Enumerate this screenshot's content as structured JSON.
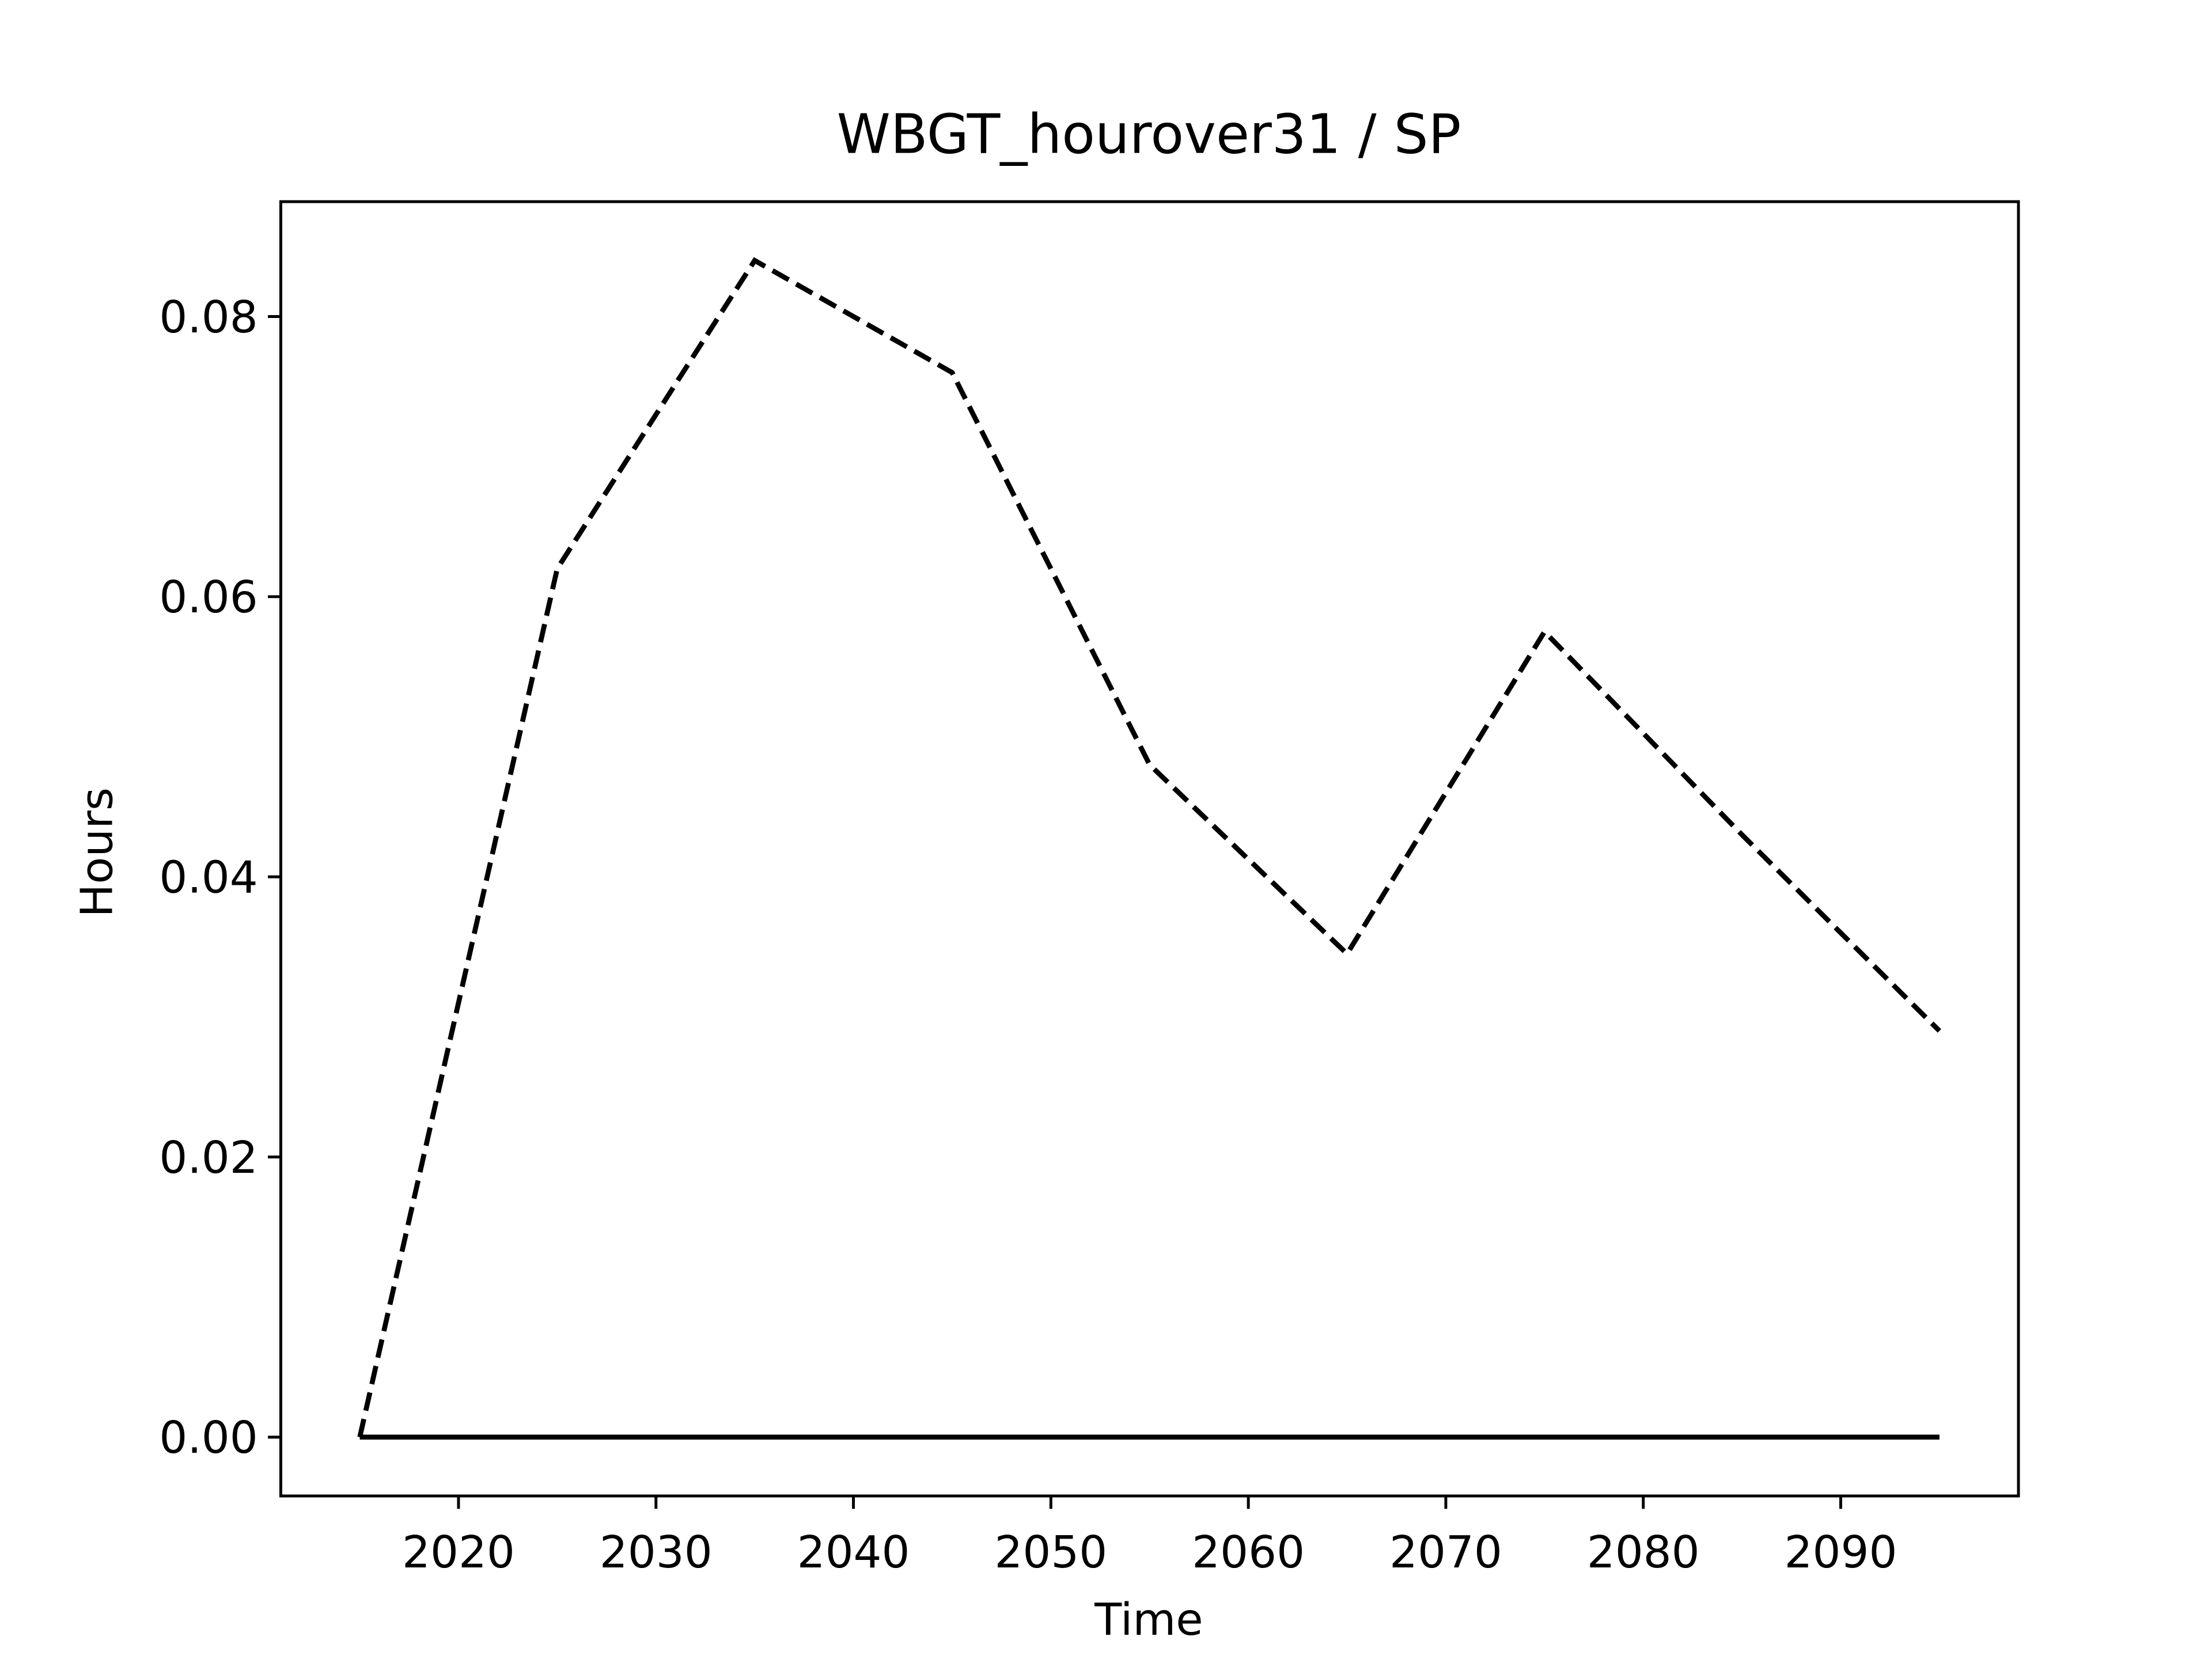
{
  "chart_data": {
    "type": "line",
    "title": "WBGT_hourover31 / SP",
    "xlabel": "Time",
    "ylabel": "Hours",
    "x": [
      2015,
      2025,
      2035,
      2045,
      2055,
      2065,
      2075,
      2085,
      2095
    ],
    "series": [
      {
        "color": "#000000",
        "linestyle": "dashed",
        "values": [
          0,
          0.062,
          0.084,
          0.076,
          0.048,
          0.0345,
          0.0575,
          0.043,
          0.029
        ]
      },
      {
        "color": "#000000",
        "linestyle": "solid",
        "values": [
          0,
          0,
          0,
          0,
          0,
          0,
          0,
          0,
          0
        ]
      }
    ],
    "xlim": [
      2011,
      2099
    ],
    "xticks": [
      2020,
      2030,
      2040,
      2050,
      2060,
      2070,
      2080,
      2090
    ],
    "ylim": [
      -0.0042,
      0.0882
    ],
    "yticks": [
      {
        "value": 0,
        "label": "0.00"
      },
      {
        "value": 0.02,
        "label": "0.02"
      },
      {
        "value": 0.04,
        "label": "0.04"
      },
      {
        "value": 0.06,
        "label": "0.06"
      },
      {
        "value": 0.08,
        "label": "0.08"
      }
    ],
    "grid": false
  }
}
